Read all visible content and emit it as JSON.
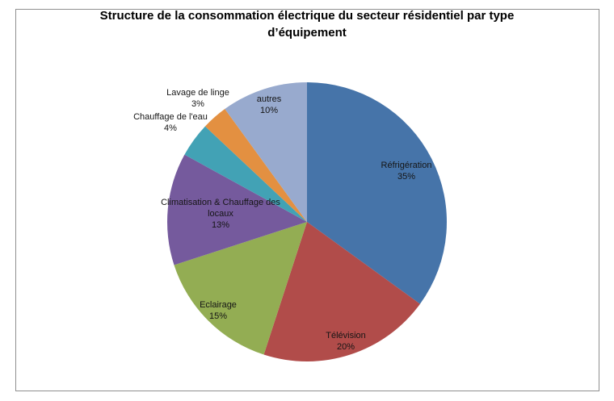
{
  "chart_data": {
    "type": "pie",
    "title": "Structure de la consommation électrique du secteur résidentiel par type d’équipement",
    "unit": "%",
    "start_angle_deg": 0,
    "direction": "clockwise",
    "legend": "none",
    "slices": [
      {
        "label": "Réfrigération",
        "value": 35,
        "percent_label": "35%",
        "color": "#4674a9",
        "label_lines": [
          "Réfrigération",
          "35%"
        ],
        "label_r": 0.8,
        "placement": "inside"
      },
      {
        "label": "Télévision",
        "value": 20,
        "percent_label": "20%",
        "color": "#b14c4a",
        "label_lines": [
          "Télévision",
          "20%"
        ],
        "label_r": 0.9,
        "placement": "inside"
      },
      {
        "label": "Eclairage",
        "value": 15,
        "percent_label": "15%",
        "color": "#93ad53",
        "label_lines": [
          "Eclairage",
          "15%"
        ],
        "label_r": 0.9,
        "placement": "inside"
      },
      {
        "label": "Climatisation & Chauffage des locaux",
        "value": 13,
        "percent_label": "13%",
        "color": "#755a9d",
        "label_lines": [
          "Climatisation & Chauffage des",
          "locaux",
          "13%"
        ],
        "label_r": 0.62,
        "placement": "inside"
      },
      {
        "label": "Chauffage de l'eau",
        "value": 4,
        "percent_label": "4%",
        "color": "#42a2b5",
        "label_lines": [
          "Chauffage de l'eau",
          "4%"
        ],
        "label_r": 1.21,
        "placement": "outside"
      },
      {
        "label": "Lavage de linge",
        "value": 3,
        "percent_label": "3%",
        "color": "#e39041",
        "label_lines": [
          "Lavage de linge",
          "3%"
        ],
        "label_r": 1.18,
        "placement": "outside"
      },
      {
        "label": "autres",
        "value": 10,
        "percent_label": "10%",
        "color": "#98aace",
        "label_lines": [
          "autres",
          "10%"
        ],
        "label_r": 0.88,
        "placement": "inside"
      }
    ]
  },
  "frame": {
    "border_color": "#8f8f8f",
    "background": "#ffffff"
  }
}
